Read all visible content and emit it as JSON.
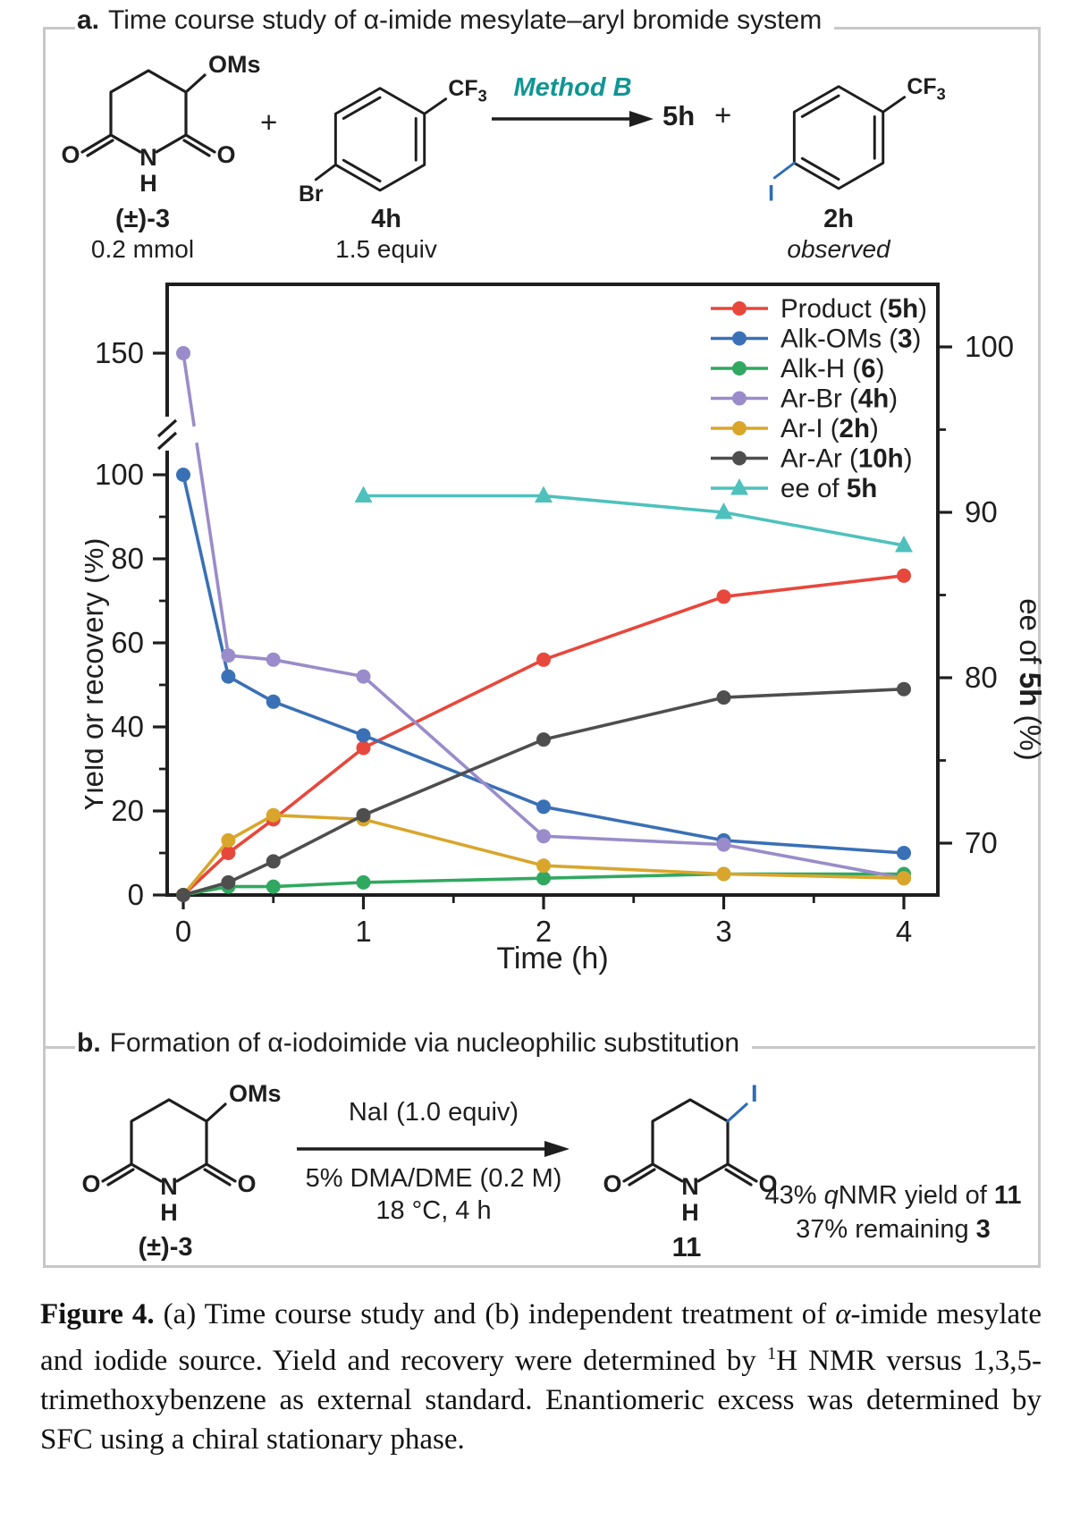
{
  "panel_a": {
    "label": "a.",
    "title": "Time course study of α-imide mesylate–aryl bromide system",
    "plus1": "+",
    "plus2": "+",
    "method": "Method B",
    "product_code": "5h",
    "r1_name": "(±)-3",
    "r1_amount": "0.2 mmol",
    "r2_name": "4h",
    "r2_amount": "1.5 equiv",
    "p2_name": "2h",
    "p2_note": "observed"
  },
  "structures": {
    "glutarimide_oms": {
      "sub": "OMs",
      "o_left": "O",
      "o_right": "O",
      "n": "N",
      "h": "H"
    },
    "glutarimide_oms_b": {
      "sub": "OMs",
      "o_left": "O",
      "o_right": "O",
      "n": "N",
      "h": "H"
    },
    "glutarimide_iodide": {
      "sub": "I",
      "o_left": "O",
      "o_right": "O",
      "n": "N",
      "h": "H"
    },
    "aryl_bromide": {
      "cf": "CF",
      "cf_sub": "3",
      "halogen": "Br"
    },
    "aryl_iodide": {
      "cf": "CF",
      "cf_sub": "3",
      "halogen": "I"
    }
  },
  "chart_data": {
    "type": "line",
    "title": "",
    "xlabel": "Time (h)",
    "ylabel_left": "Yield or recovery (%)",
    "ylabel_right_pre": "ee of ",
    "ylabel_right_bold": "5h",
    "ylabel_right_post": " (%)",
    "x": [
      0,
      0.25,
      0.5,
      1,
      2,
      3,
      4
    ],
    "x_ticks": [
      0,
      1,
      2,
      3,
      4
    ],
    "x_minor_ticks": [
      0.5,
      1.5,
      2.5,
      3.5
    ],
    "y_ticks_left": [
      0,
      20,
      40,
      60,
      80,
      100,
      150
    ],
    "y_minor_ticks_left": [
      10,
      30,
      50,
      70,
      90
    ],
    "y_ticks_right": [
      70,
      80,
      90,
      100
    ],
    "y_minor_ticks_right": [
      75,
      85,
      95
    ],
    "axis_break_left": true,
    "ylim_left": [
      0,
      155
    ],
    "ylim_right": [
      65,
      101
    ],
    "legend_position": "top-right",
    "grid": false,
    "series": [
      {
        "key": "product-5h",
        "label_pre": "Product (",
        "label_bold": "5h",
        "label_post": ")",
        "color": "#e8473c",
        "marker": "circle",
        "axis": "left",
        "values": [
          0,
          10,
          18,
          35,
          56,
          71,
          76
        ]
      },
      {
        "key": "alk-oms-3",
        "label_pre": "Alk-OMs (",
        "label_bold": "3",
        "label_post": ")",
        "color": "#3a70b6",
        "marker": "circle",
        "axis": "left",
        "values": [
          100,
          52,
          46,
          38,
          21,
          13,
          10
        ]
      },
      {
        "key": "alk-h-6",
        "label_pre": "Alk-H (",
        "label_bold": "6",
        "label_post": ")",
        "color": "#31a860",
        "marker": "circle",
        "axis": "left",
        "values": [
          0,
          2,
          2,
          3,
          4,
          5,
          5
        ]
      },
      {
        "key": "ar-br-4h",
        "label_pre": "Ar-Br (",
        "label_bold": "4h",
        "label_post": ")",
        "color": "#9a8cca",
        "marker": "circle",
        "axis": "left",
        "break_gap": true,
        "values": [
          150,
          57,
          56,
          52,
          14,
          12,
          4
        ]
      },
      {
        "key": "ar-i-2h",
        "label_pre": "Ar-I (",
        "label_bold": "2h",
        "label_post": ")",
        "color": "#d9a62b",
        "marker": "circle",
        "axis": "left",
        "values": [
          0,
          13,
          19,
          18,
          7,
          5,
          4
        ]
      },
      {
        "key": "ar-ar-10h",
        "label_pre": "Ar-Ar (",
        "label_bold": "10h",
        "label_post": ")",
        "color": "#4e4e4e",
        "marker": "circle",
        "axis": "left",
        "values": [
          0,
          3,
          8,
          19,
          37,
          47,
          49
        ]
      },
      {
        "key": "ee-of-5h",
        "label_pre": "ee of ",
        "label_bold": "5h",
        "label_post": "",
        "color": "#4ec1bc",
        "marker": "triangle",
        "axis": "right",
        "x": [
          1,
          2,
          3,
          4
        ],
        "values": [
          91,
          91,
          90,
          88
        ]
      }
    ]
  },
  "panel_b": {
    "label": "b.",
    "title": "Formation of α-iodoimide via nucleophilic substitution",
    "above_arrow": "NaI (1.0 equiv)",
    "below_arrow_line1": "5% DMA/DME (0.2 M)",
    "below_arrow_line2": "18 °C, 4 h",
    "reactant_name": "(±)-3",
    "product_name": "11",
    "result1_pre": "43% ",
    "result1_italic": "q",
    "result1_mid": "NMR yield of ",
    "result1_bold": "11",
    "result2_pre": "37% remaining ",
    "result2_bold": "3"
  },
  "caption": {
    "label": "Figure 4.",
    "seg1": " (a) Time course study and (b) independent treatment of ",
    "alpha": "α",
    "seg2": "-imide mesylate and iodide source. Yield and recovery were determined by ",
    "sup": "1",
    "seg3": "H NMR versus 1,3,5-trimethoxybenzene as external standard. Enantiomeric excess was determined by SFC using a chiral stationary phase."
  }
}
